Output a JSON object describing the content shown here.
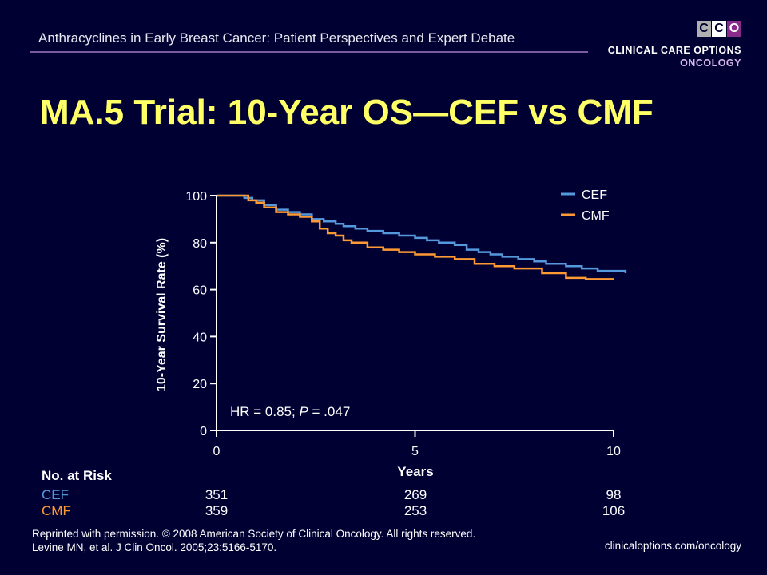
{
  "header": {
    "subtitle": "Anthracyclines in Early Breast Cancer: Patient Perspectives and Expert Debate",
    "brand_line1": "CLINICAL CARE OPTIONS",
    "brand_line2": "ONCOLOGY",
    "logo_letters": [
      "C",
      "C",
      "O"
    ],
    "accent_colors": {
      "title": "#ffff66",
      "cef": "#5599dd",
      "cmf": "#ff9933",
      "background": "#000033"
    }
  },
  "title": "MA.5 Trial: 10-Year OS—CEF vs CMF",
  "chart_data": {
    "type": "line",
    "xlabel": "Years",
    "ylabel": "10-Year Survival Rate (%)",
    "xlim": [
      0,
      10
    ],
    "ylim": [
      0,
      100
    ],
    "x_ticks": [
      "0",
      "5",
      "10"
    ],
    "y_ticks": [
      "0",
      "20",
      "40",
      "60",
      "80",
      "100"
    ],
    "legend_position": "top-right",
    "annotation_prefix": "HR = 0.85; ",
    "annotation_p": "P",
    "annotation_suffix": " = .047",
    "series": [
      {
        "name": "CEF",
        "color": "#5599dd",
        "x": [
          0,
          0.7,
          0.9,
          1.2,
          1.5,
          1.8,
          2.1,
          2.4,
          2.7,
          3.0,
          3.2,
          3.5,
          3.8,
          4.2,
          4.6,
          5.0,
          5.3,
          5.6,
          6.0,
          6.3,
          6.6,
          6.9,
          7.2,
          7.6,
          8.0,
          8.3,
          8.8,
          9.2,
          9.6,
          10.3
        ],
        "y": [
          100,
          99,
          98,
          96,
          94,
          93,
          92,
          90,
          89,
          88,
          87,
          86,
          85,
          84,
          83,
          82,
          81,
          80,
          79,
          77,
          76,
          75,
          74,
          73,
          72,
          71,
          70,
          69,
          68,
          67
        ]
      },
      {
        "name": "CMF",
        "color": "#ff9933",
        "x": [
          0,
          0.8,
          1.0,
          1.2,
          1.5,
          1.8,
          2.1,
          2.4,
          2.6,
          2.8,
          3.0,
          3.2,
          3.4,
          3.8,
          4.2,
          4.6,
          5.0,
          5.5,
          6.0,
          6.5,
          7.0,
          7.5,
          8.2,
          8.8,
          9.3,
          10.0
        ],
        "y": [
          100,
          98,
          97,
          95,
          93,
          92,
          91,
          89,
          86,
          84,
          83,
          81,
          80,
          78,
          77,
          76,
          75,
          74,
          73,
          71,
          70,
          69,
          67,
          65,
          64.5,
          64.5
        ]
      }
    ],
    "risk_table": {
      "heading": "No. at Risk",
      "columns": [
        "0",
        "5",
        "10"
      ],
      "rows": [
        {
          "label": "CEF",
          "values": [
            "351",
            "269",
            "98"
          ]
        },
        {
          "label": "CMF",
          "values": [
            "359",
            "253",
            "106"
          ]
        }
      ]
    }
  },
  "footer": {
    "line1": "Reprinted with permission. © 2008 American Society of Clinical Oncology. All rights reserved.",
    "line2": "Levine MN, et al. J Clin Oncol. 2005;23:5166-5170.",
    "site": "clinicaloptions.com/oncology"
  }
}
